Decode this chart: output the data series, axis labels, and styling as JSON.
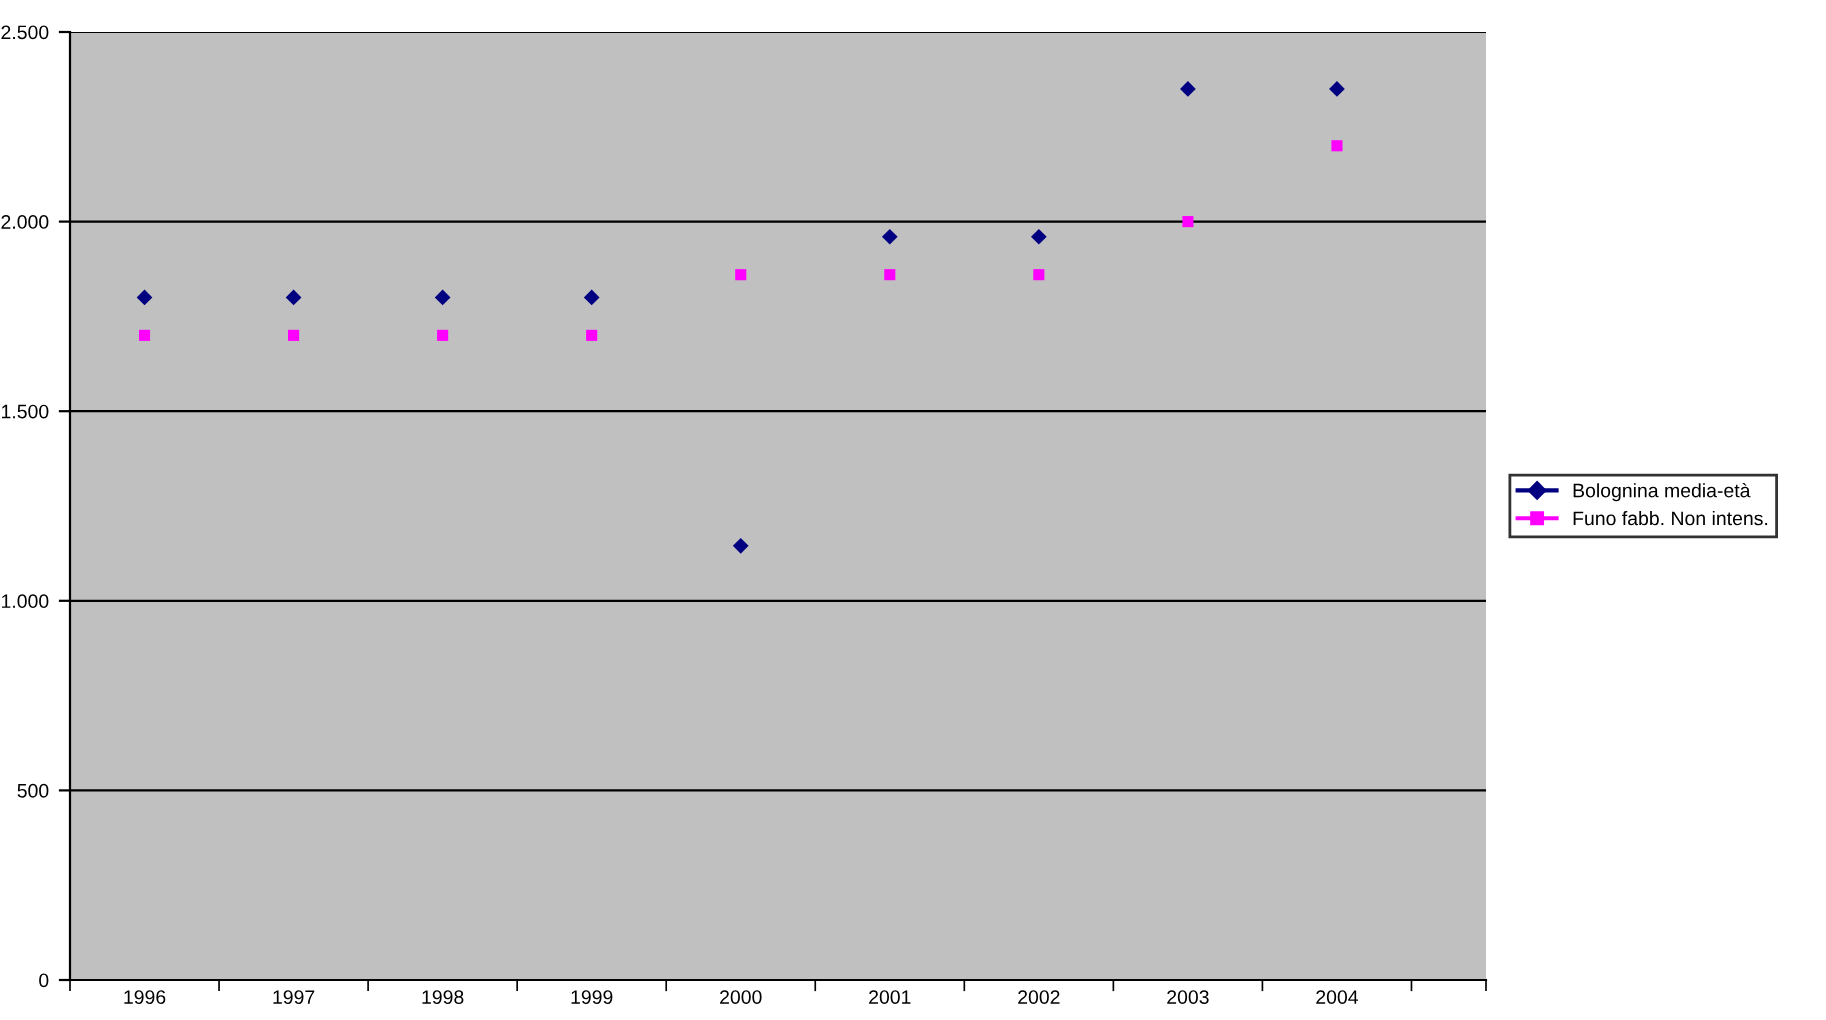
{
  "chart_data": {
    "type": "scatter",
    "categories": [
      "1996",
      "1997",
      "1998",
      "1999",
      "2000",
      "2001",
      "2002",
      "2003",
      "2004"
    ],
    "series": [
      {
        "name": "Bolognina media-età",
        "color": "#000080",
        "marker": "diamond",
        "values": [
          1800,
          1800,
          1800,
          1800,
          1145,
          1960,
          1960,
          2350,
          2350
        ]
      },
      {
        "name": "Funo fabb. Non intens.",
        "color": "#ff00ff",
        "marker": "square",
        "values": [
          1700,
          1700,
          1700,
          1700,
          1860,
          1860,
          1860,
          2000,
          2200
        ]
      }
    ],
    "ylim": [
      0,
      2500
    ],
    "yticks": [
      0,
      500,
      {
        "value": 1000,
        "label": "1.000"
      },
      {
        "value": 1500,
        "label": "1.500"
      },
      {
        "value": 2000,
        "label": "2.000"
      },
      {
        "value": 2500,
        "label": "2.500"
      }
    ],
    "grid": "y",
    "legend": "right"
  }
}
